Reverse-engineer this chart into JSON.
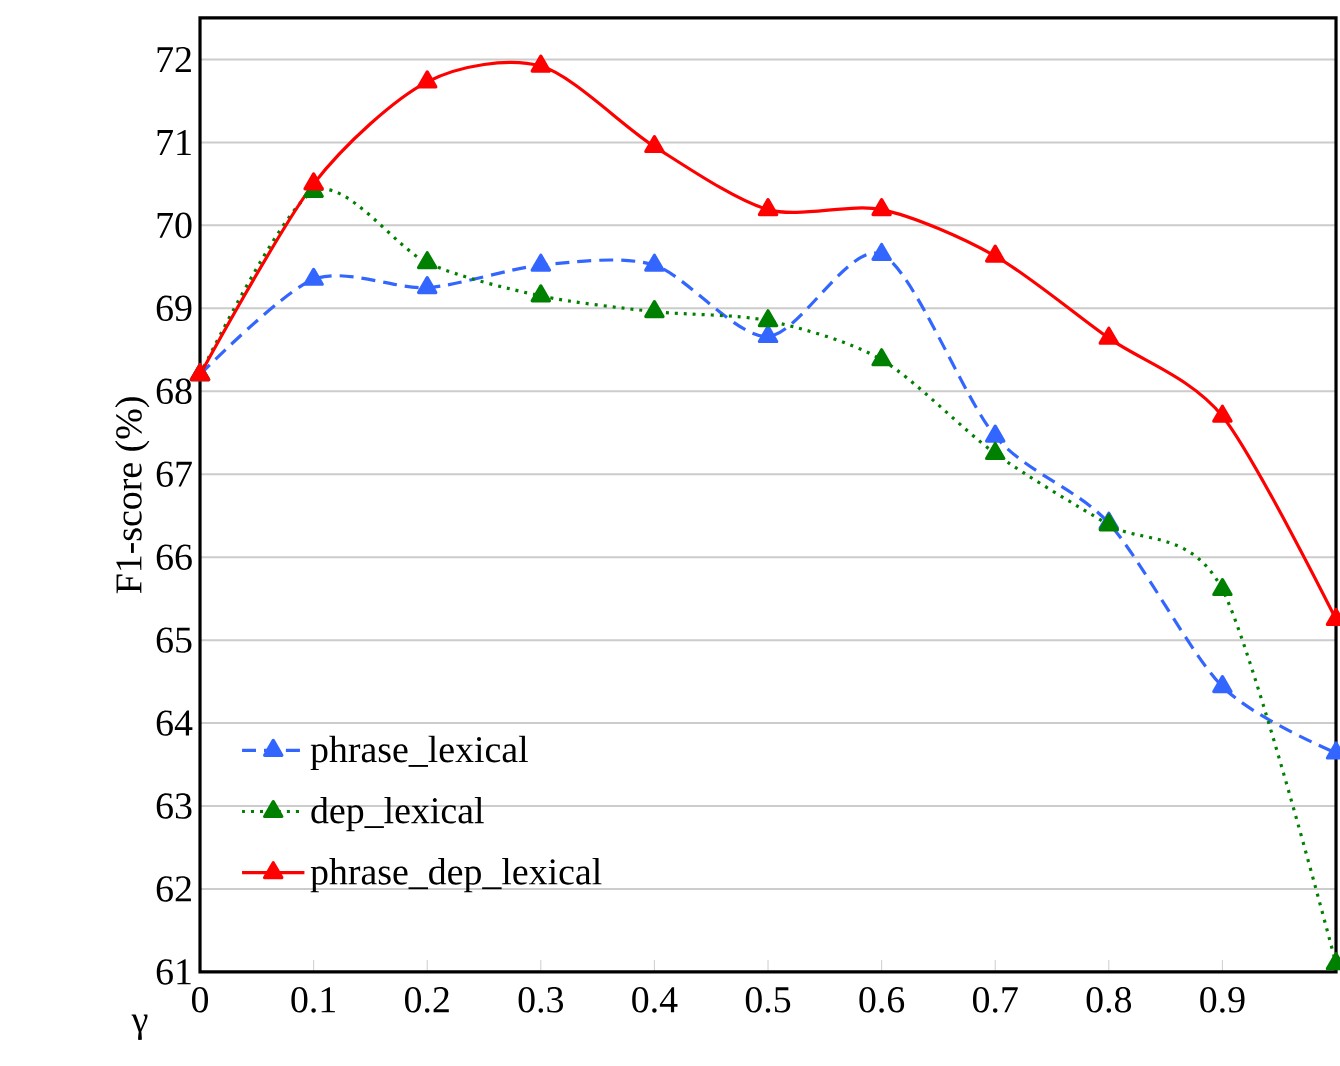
{
  "chart_data": {
    "type": "line",
    "xlabel": "γ",
    "ylabel": "F1-score (%)",
    "x": [
      0,
      0.1,
      0.2,
      0.3,
      0.4,
      0.5,
      0.6,
      0.7,
      0.8,
      0.9,
      1.0
    ],
    "series": [
      {
        "name": "phrase_lexical",
        "color": "#3366ff",
        "line_style": "dashed",
        "values": [
          68.2,
          69.35,
          69.25,
          69.52,
          69.52,
          68.66,
          69.65,
          67.46,
          66.41,
          64.44,
          63.64
        ]
      },
      {
        "name": "dep_lexical",
        "color": "#008000",
        "line_style": "dotted",
        "values": [
          68.2,
          70.41,
          69.55,
          69.15,
          68.96,
          68.85,
          68.38,
          67.25,
          66.39,
          65.61,
          61.1
        ]
      },
      {
        "name": "phrase_dep_lexical",
        "color": "#ff0000",
        "line_style": "solid",
        "values": [
          68.2,
          70.5,
          71.73,
          71.92,
          70.95,
          70.19,
          70.19,
          69.63,
          68.64,
          67.7,
          65.25
        ]
      }
    ],
    "xlim": [
      0,
      1
    ],
    "ylim": [
      61,
      72.5
    ],
    "xticks": [
      0,
      0.1,
      0.2,
      0.3,
      0.4,
      0.5,
      0.6,
      0.7,
      0.8,
      0.9
    ],
    "yticks": [
      61,
      62,
      63,
      64,
      65,
      66,
      67,
      68,
      69,
      70,
      71,
      72
    ],
    "grid": "y",
    "legend": "bottom left",
    "marker": "triangle"
  }
}
